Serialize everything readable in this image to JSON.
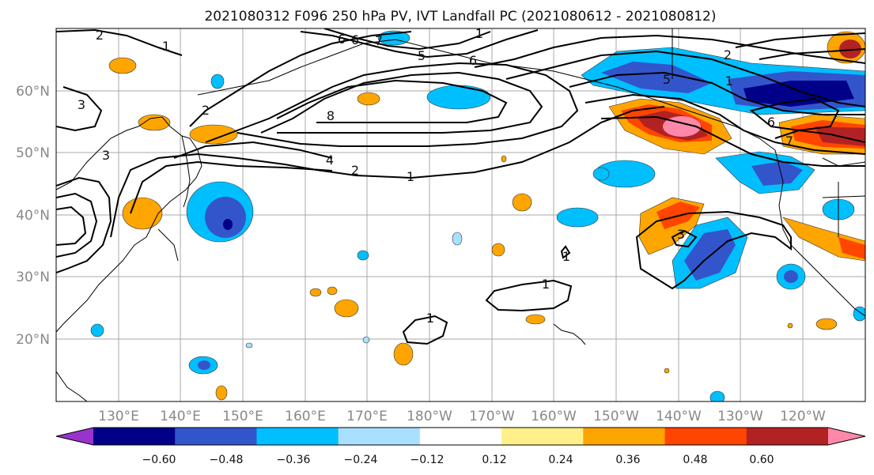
{
  "title": "2021080312 F096 250 hPa PV, IVT Landfall PC (2021080612 - 2021080812)",
  "lon_ticks": [
    "130°E",
    "140°E",
    "150°E",
    "160°E",
    "170°E",
    "180°W",
    "170°W",
    "160°W",
    "150°W",
    "140°W",
    "130°W",
    "120°W"
  ],
  "lat_ticks": [
    "60°N",
    "50°N",
    "40°N",
    "30°N",
    "20°N"
  ],
  "colorbar": {
    "colors": [
      "#9933cc",
      "#000088",
      "#3355cc",
      "#00bfff",
      "#aae0ff",
      "#ffffff",
      "#fff08a",
      "#ffa500",
      "#ff4500",
      "#b22222",
      "#ff88aa"
    ],
    "tick_labels": [
      "−0.60",
      "−0.48",
      "−0.36",
      "−0.24",
      "−0.12",
      "0.12",
      "0.24",
      "0.36",
      "0.48",
      "0.60"
    ]
  },
  "contour_labels": [
    "2",
    "1",
    "3",
    "2",
    "3",
    "4",
    "2",
    "1",
    "8",
    "6",
    "5",
    "6",
    "6",
    "7",
    "1",
    "5",
    "1",
    "6",
    "7",
    "2",
    "1",
    "1",
    "3",
    "1"
  ]
}
